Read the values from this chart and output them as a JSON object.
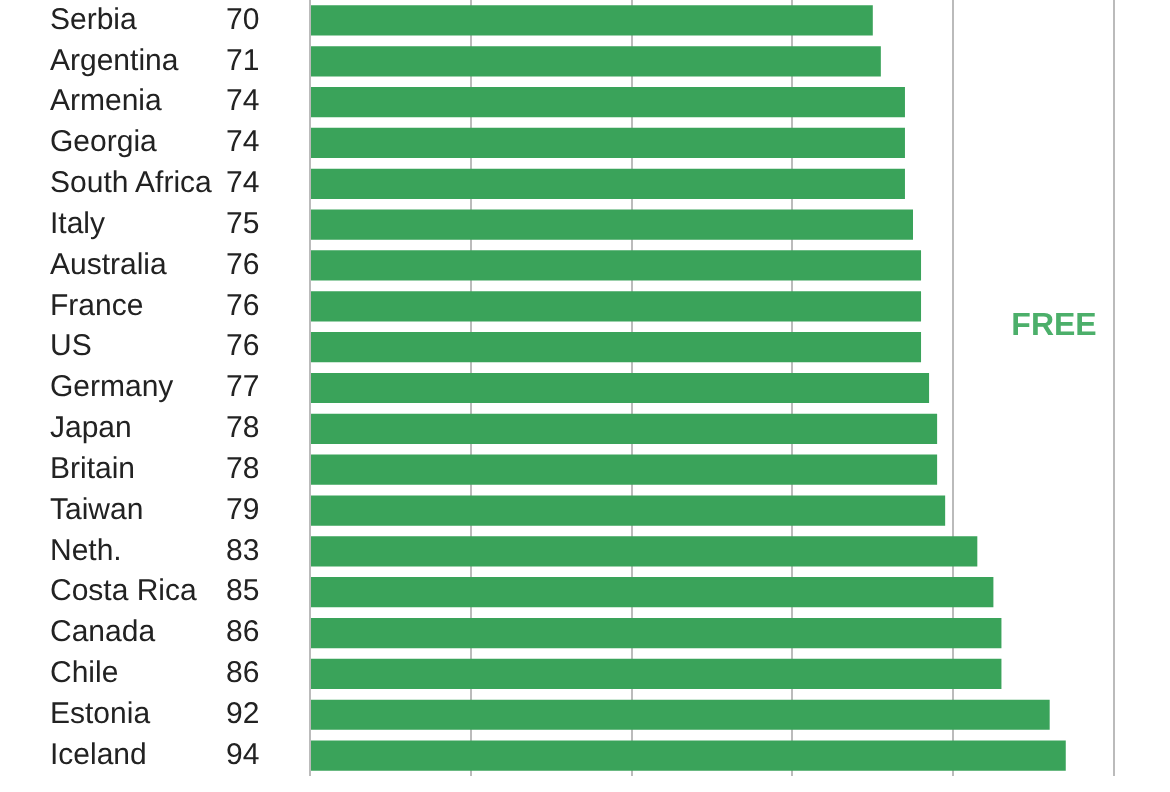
{
  "chart_data": {
    "type": "bar",
    "orientation": "horizontal",
    "categories": [
      "Serbia",
      "Argentina",
      "Armenia",
      "Georgia",
      "South Africa",
      "Italy",
      "Australia",
      "France",
      "US",
      "Germany",
      "Japan",
      "Britain",
      "Taiwan",
      "Neth.",
      "Costa Rica",
      "Canada",
      "Chile",
      "Estonia",
      "Iceland"
    ],
    "values": [
      70,
      71,
      74,
      74,
      74,
      75,
      76,
      76,
      76,
      77,
      78,
      78,
      79,
      83,
      85,
      86,
      86,
      92,
      94
    ],
    "color": "#3aa35a",
    "xlim": [
      0,
      100
    ],
    "xticks": [
      {
        "value": 0,
        "label": null
      },
      {
        "value": 20,
        "label": null
      },
      {
        "value": 40,
        "label": null
      },
      {
        "value": 60,
        "label": null
      },
      {
        "value": 80,
        "label": null
      },
      {
        "value": 100,
        "label": null
      }
    ],
    "tick_labels": "y",
    "grid": "x",
    "data_labels": true,
    "annotations": [
      "FREE"
    ]
  }
}
